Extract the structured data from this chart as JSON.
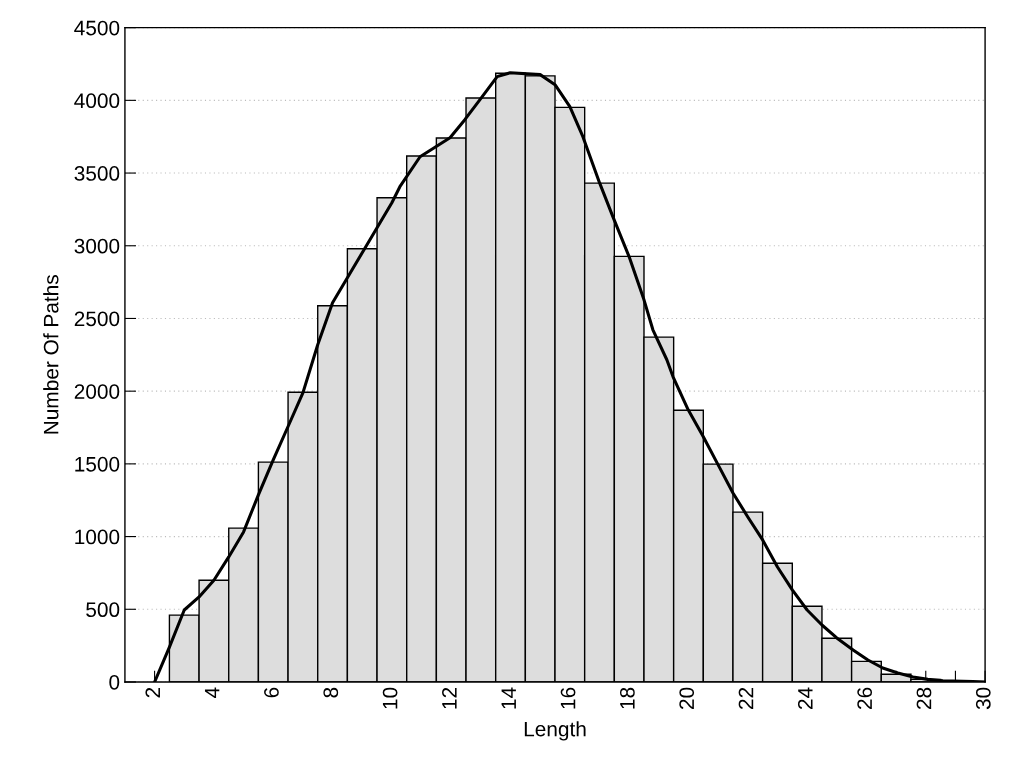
{
  "chart_data": {
    "type": "histogram",
    "xlabel": "Length",
    "ylabel": "Number Of Paths",
    "xlim": [
      1,
      30
    ],
    "ylim": [
      0,
      4500
    ],
    "xticks": [
      2,
      4,
      6,
      8,
      10,
      12,
      14,
      16,
      18,
      20,
      22,
      24,
      26,
      {
        "value": 27,
        "label": null
      },
      28,
      {
        "value": 29,
        "label": null
      },
      30
    ],
    "yticks": [
      0,
      500,
      1000,
      1500,
      2000,
      2500,
      3000,
      3500,
      4000,
      4500
    ],
    "grid": "y",
    "legend": false,
    "series": [
      {
        "color": "#dddddd",
        "bins": [
          2.5,
          3.5,
          4.5,
          5.5,
          6.5,
          7.5,
          8.5,
          9.5,
          10.5,
          11.5,
          12.5,
          13.5,
          14.5,
          15.5,
          16.5,
          17.5,
          18.5,
          19.5,
          20.5,
          21.5,
          22.5,
          23.5,
          24.5,
          25.5,
          26.5,
          27.5,
          28.5,
          29.5
        ],
        "values": [
          460,
          700,
          1058,
          1512,
          1993,
          2587,
          2979,
          3330,
          3617,
          3741,
          4016,
          4186,
          4168,
          3952,
          3431,
          2927,
          2372,
          1869,
          1498,
          1168,
          817,
          521,
          301,
          142,
          53,
          18,
          5
        ]
      },
      {
        "type": "line",
        "color": "#000000",
        "x": [
          2,
          2.5,
          3,
          3.5,
          4,
          4.5,
          5,
          5.5,
          6,
          6.5,
          7,
          7.5,
          8,
          8.5,
          9,
          9.5,
          10,
          10.27,
          10.95,
          11.96,
          12.46,
          12.97,
          13.55,
          13.99,
          15.0,
          15.5,
          16.0,
          16.44,
          17.0,
          17.45,
          18.0,
          18.5,
          18.8,
          19.27,
          19.48,
          19.99,
          20.5,
          21.0,
          21.5,
          22.0,
          22.5,
          23.0,
          23.5,
          24.0,
          24.5,
          25.0,
          25.55,
          26.05,
          26.55,
          27.06,
          27.57,
          28.07,
          28.58,
          29.59,
          30
        ],
        "values": [
          0,
          240,
          495,
          585,
          700,
          860,
          1032,
          1287,
          1528,
          1757,
          1988,
          2319,
          2608,
          2780,
          2952,
          3124,
          3296,
          3406,
          3612,
          3743,
          3867,
          4005,
          4163,
          4190,
          4177,
          4108,
          3957,
          3750,
          3434,
          3200,
          2924,
          2628,
          2422,
          2216,
          2099,
          1872,
          1686,
          1493,
          1300,
          1135,
          977,
          791,
          633,
          495,
          392,
          303,
          220,
          151,
          96,
          62,
          34,
          18,
          9,
          3,
          0
        ]
      }
    ]
  }
}
